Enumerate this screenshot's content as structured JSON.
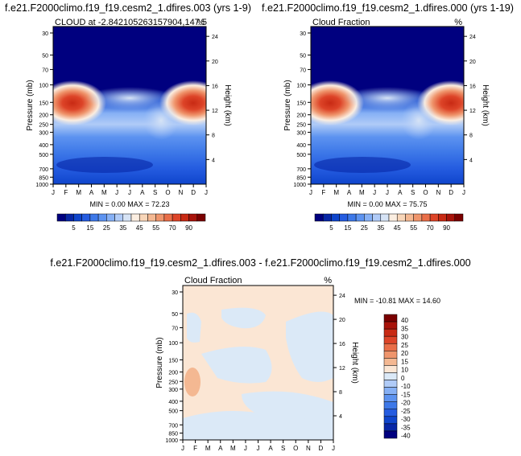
{
  "panels": [
    {
      "title": "f.e21.F2000climo.f19_f19.cesm2_1.dfires.003 (yrs 1-9)",
      "left_label": "CLOUD at -2.842105263157904,147.5",
      "right_label": "%",
      "stats": "MIN =   0.00 MAX =  72.23"
    },
    {
      "title": "f.e21.F2000climo.f19_f19.cesm2_1.dfires.000 (yrs 1-19)",
      "left_label": "Cloud Fraction",
      "right_label": "%",
      "stats": "MIN =   0.00 MAX =  75.75"
    },
    {
      "title": "f.e21.F2000climo.f19_f19.cesm2_1.dfires.003 - f.e21.F2000climo.f19_f19.cesm2_1.dfires.000",
      "left_label": "Cloud Fraction",
      "right_label": "%",
      "stats": "MIN = -10.81 MAX =  14.60"
    }
  ],
  "chart_data": [
    {
      "type": "heatmap",
      "title": "f.e21.F2000climo.f19_f19.cesm2_1.dfires.003 (yrs 1-9)",
      "ylabel": "Pressure (mb)",
      "ylabel_right": "Height (km)",
      "x": [
        "J",
        "F",
        "M",
        "A",
        "M",
        "J",
        "J",
        "A",
        "S",
        "O",
        "N",
        "D",
        "J"
      ],
      "y_ticks": [
        "30",
        "50",
        "70",
        "100",
        "150",
        "200",
        "250",
        "300",
        "400",
        "500",
        "700",
        "850",
        "1000"
      ],
      "y_right_ticks": [
        "24",
        "20",
        "16",
        "12",
        "8",
        "4"
      ],
      "y_scale": "log",
      "z_range": [
        0,
        72.23
      ],
      "colorbar_ticks": [
        "5",
        "15",
        "25",
        "35",
        "45",
        "55",
        "70",
        "90"
      ],
      "colormap": [
        "#00007f",
        "#0726a6",
        "#0f45cc",
        "#255ce0",
        "#3d78e8",
        "#5d93f0",
        "#86b0f5",
        "#b0cbf7",
        "#d6e3f5",
        "#fbeee1",
        "#f8d6b9",
        "#f4b892",
        "#ef956c",
        "#e96e48",
        "#dd4428",
        "#c82a14",
        "#a8130a",
        "#7a0000"
      ]
    },
    {
      "type": "heatmap",
      "title": "f.e21.F2000climo.f19_f19.cesm2_1.dfires.000 (yrs 1-19)",
      "ylabel": "Pressure (mb)",
      "ylabel_right": "Height (km)",
      "x": [
        "J",
        "F",
        "M",
        "A",
        "M",
        "J",
        "J",
        "A",
        "S",
        "O",
        "N",
        "D",
        "J"
      ],
      "y_ticks": [
        "30",
        "50",
        "70",
        "100",
        "150",
        "200",
        "250",
        "300",
        "400",
        "500",
        "700",
        "850",
        "1000"
      ],
      "y_right_ticks": [
        "24",
        "20",
        "16",
        "12",
        "8",
        "4"
      ],
      "y_scale": "log",
      "z_range": [
        0,
        75.75
      ],
      "colorbar_ticks": [
        "5",
        "15",
        "25",
        "35",
        "45",
        "55",
        "70",
        "90"
      ]
    },
    {
      "type": "heatmap",
      "title": "f.e21.F2000climo.f19_f19.cesm2_1.dfires.003 - f.e21.F2000climo.f19_f19.cesm2_1.dfires.000",
      "ylabel": "Pressure (mb)",
      "ylabel_right": "Height (km)",
      "x": [
        "J",
        "F",
        "M",
        "A",
        "M",
        "J",
        "J",
        "A",
        "S",
        "O",
        "N",
        "D",
        "J"
      ],
      "y_ticks": [
        "30",
        "50",
        "70",
        "100",
        "150",
        "200",
        "250",
        "300",
        "400",
        "500",
        "700",
        "850",
        "1000"
      ],
      "y_right_ticks": [
        "24",
        "20",
        "16",
        "12",
        "8",
        "4"
      ],
      "y_scale": "log",
      "z_range": [
        -10.81,
        14.6
      ],
      "colorbar_ticks": [
        "40",
        "35",
        "30",
        "25",
        "20",
        "15",
        "10",
        "0",
        "-10",
        "-15",
        "-20",
        "-25",
        "-30",
        "-35",
        "-40"
      ],
      "colormap": [
        "#7a0000",
        "#a8130a",
        "#c82a14",
        "#dd4428",
        "#e96e48",
        "#ef956c",
        "#f4b892",
        "#fbe6d4",
        "#dbe9f7",
        "#b0cbf7",
        "#86b0f5",
        "#5d93f0",
        "#3d78e8",
        "#255ce0",
        "#0f45cc",
        "#0726a6",
        "#00007f"
      ]
    }
  ]
}
